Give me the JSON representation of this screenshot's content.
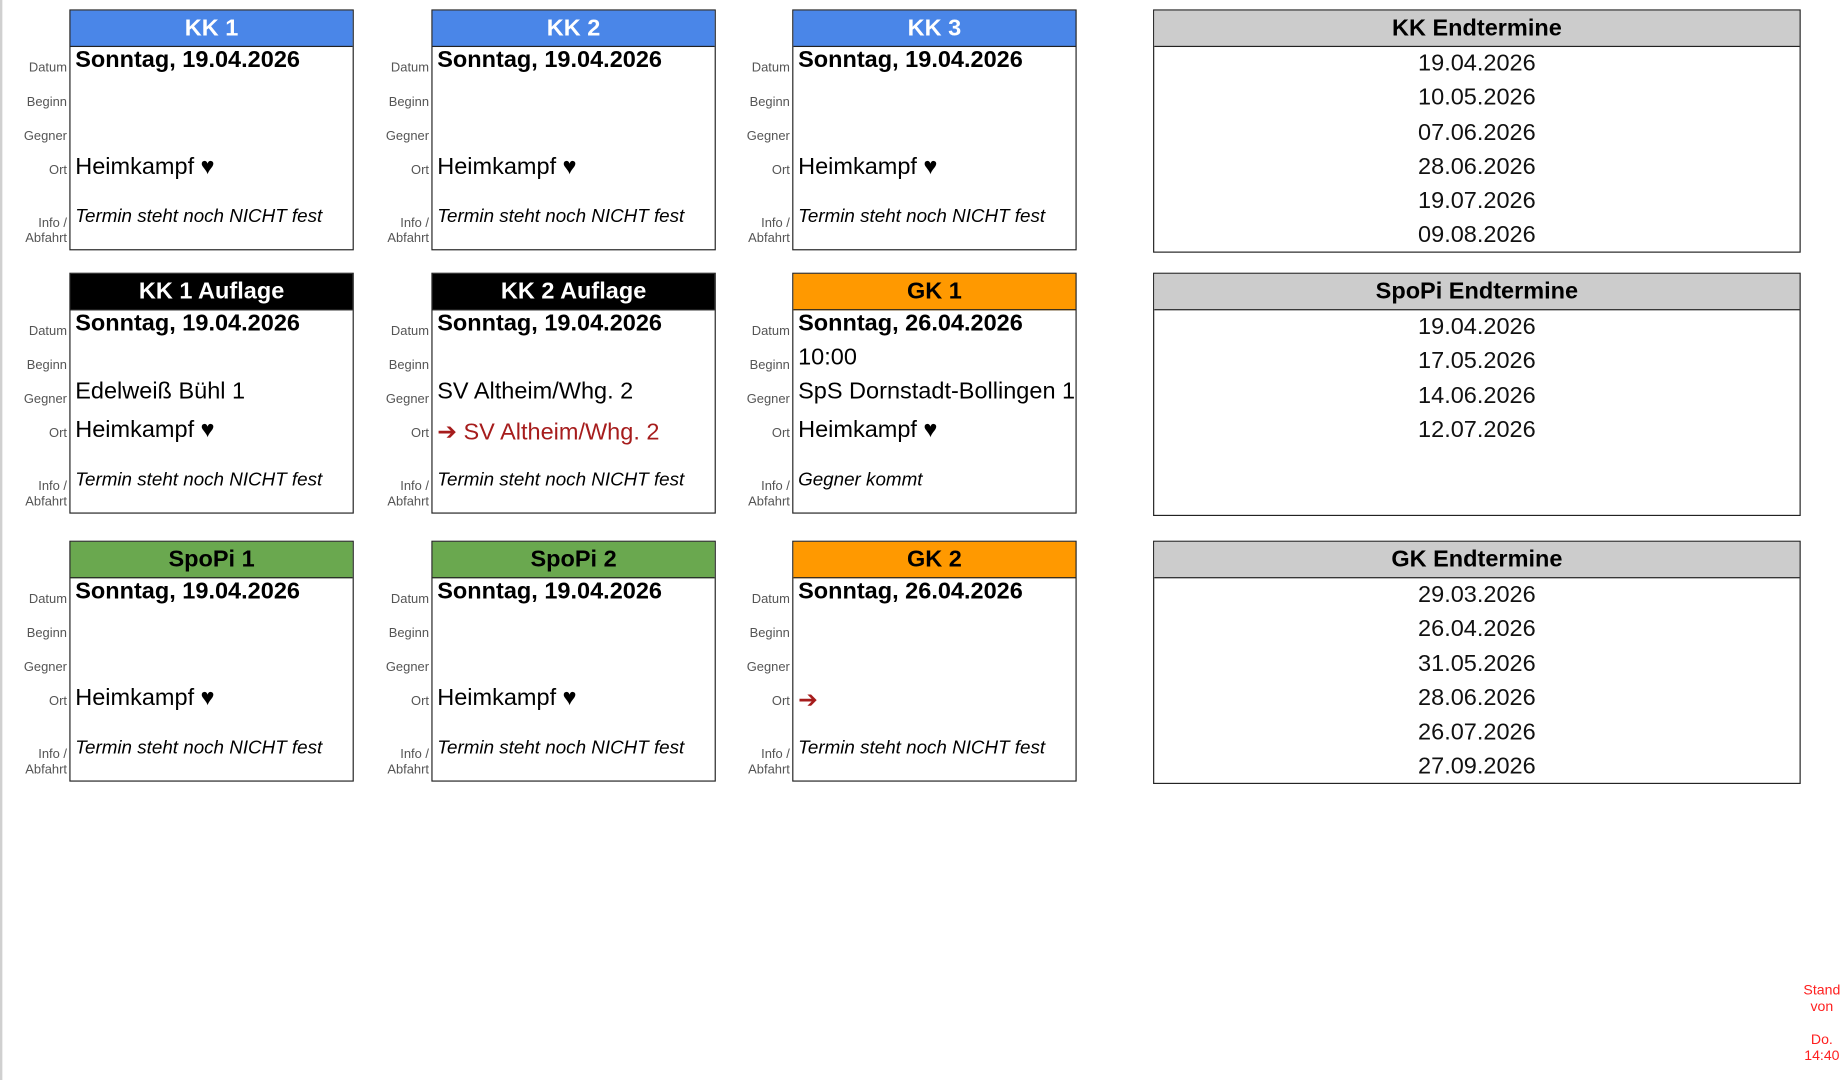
{
  "labels": {
    "datum": "Datum",
    "beginn": "Beginn",
    "gegner": "Gegner",
    "ort": "Ort",
    "info": "Info / Abfahrt"
  },
  "cards": [
    {
      "title": "KK 1",
      "color": "#4a86e8",
      "title_color": "#ffffff",
      "datum": "Sonntag, 19.04.2026",
      "beginn": "",
      "gegner": "",
      "ort": "Heimkampf ♥",
      "away": false,
      "info": "Termin steht noch NICHT fest"
    },
    {
      "title": "KK 2",
      "color": "#4a86e8",
      "title_color": "#ffffff",
      "datum": "Sonntag, 19.04.2026",
      "beginn": "",
      "gegner": "",
      "ort": "Heimkampf ♥",
      "away": false,
      "info": "Termin steht noch NICHT fest"
    },
    {
      "title": "KK 3",
      "color": "#4a86e8",
      "title_color": "#ffffff",
      "datum": "Sonntag, 19.04.2026",
      "beginn": "",
      "gegner": "",
      "ort": "Heimkampf ♥",
      "away": false,
      "info": "Termin steht noch NICHT fest"
    },
    {
      "title": "KK 1 Auflage",
      "color": "#000000",
      "title_color": "#ffffff",
      "datum": "Sonntag, 19.04.2026",
      "beginn": "",
      "gegner": "Edelweiß Bühl 1",
      "ort": "Heimkampf ♥",
      "away": false,
      "info": "Termin steht noch NICHT fest"
    },
    {
      "title": "KK 2 Auflage",
      "color": "#000000",
      "title_color": "#ffffff",
      "datum": "Sonntag, 19.04.2026",
      "beginn": "",
      "gegner": "SV Altheim/Whg. 2",
      "ort": "➔ SV Altheim/Whg. 2",
      "away": true,
      "info": "Termin steht noch NICHT fest"
    },
    {
      "title": "GK 1",
      "color": "#ff9900",
      "title_color": "#000000",
      "datum": "Sonntag, 26.04.2026",
      "beginn": "10:00",
      "gegner": "SpS Dornstadt-Bollingen 1",
      "ort": "Heimkampf ♥",
      "away": false,
      "info": "Gegner kommt"
    },
    {
      "title": "SpoPi 1",
      "color": "#6aa84f",
      "title_color": "#000000",
      "datum": "Sonntag, 19.04.2026",
      "beginn": "",
      "gegner": "",
      "ort": "Heimkampf ♥",
      "away": false,
      "info": "Termin steht noch NICHT fest"
    },
    {
      "title": "SpoPi 2",
      "color": "#6aa84f",
      "title_color": "#000000",
      "datum": "Sonntag, 19.04.2026",
      "beginn": "",
      "gegner": "",
      "ort": "Heimkampf ♥",
      "away": false,
      "info": "Termin steht noch NICHT fest"
    },
    {
      "title": "GK 2",
      "color": "#ff9900",
      "title_color": "#000000",
      "datum": "Sonntag, 26.04.2026",
      "beginn": "",
      "gegner": "",
      "ort": "➔",
      "away": true,
      "info": "Termin steht noch NICHT fest"
    }
  ],
  "endtermine": [
    {
      "title": "KK Endtermine",
      "dates": [
        "19.04.2026",
        "10.05.2026",
        "07.06.2026",
        "28.06.2026",
        "19.07.2026",
        "09.08.2026"
      ]
    },
    {
      "title": "SpoPi Endtermine",
      "dates": [
        "19.04.2026",
        "17.05.2026",
        "14.06.2026",
        "12.07.2026"
      ]
    },
    {
      "title": "GK Endtermine",
      "dates": [
        "29.03.2026",
        "26.04.2026",
        "31.05.2026",
        "28.06.2026",
        "26.07.2026",
        "27.09.2026"
      ]
    }
  ],
  "stand": {
    "line1": "Stand von",
    "line2": "Do. 14:40"
  },
  "colors": {
    "away": "#a61c1c",
    "stand": "#ff2020",
    "endtermine_header": "#cccccc"
  }
}
